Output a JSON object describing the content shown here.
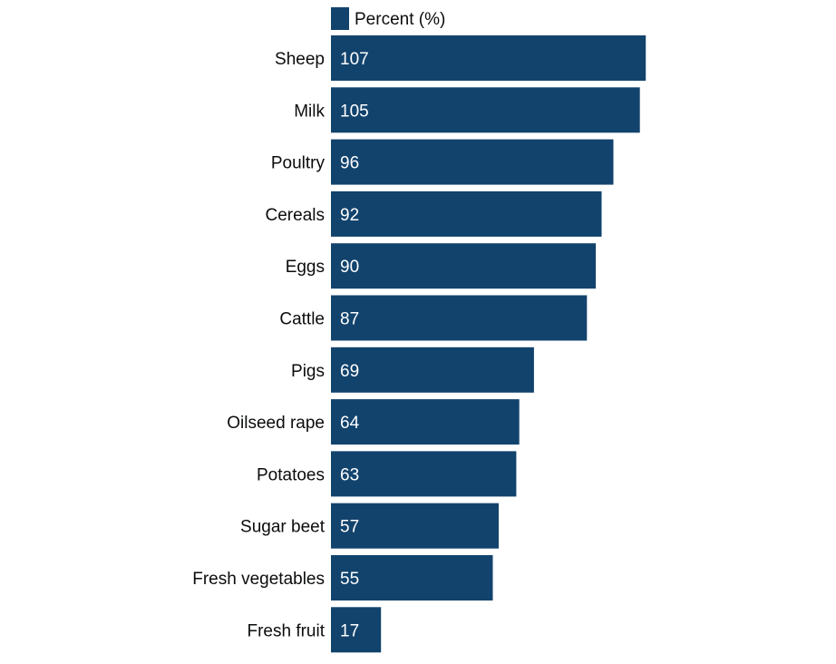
{
  "chart_data": {
    "type": "bar",
    "orientation": "horizontal",
    "categories": [
      "Sheep",
      "Milk",
      "Poultry",
      "Cereals",
      "Eggs",
      "Cattle",
      "Pigs",
      "Oilseed rape",
      "Potatoes",
      "Sugar beet",
      "Fresh vegetables",
      "Fresh fruit"
    ],
    "series": [
      {
        "name": "Percent (%)",
        "values": [
          107,
          105,
          96,
          92,
          90,
          87,
          69,
          64,
          63,
          57,
          55,
          17
        ],
        "color": "#12436d"
      }
    ],
    "title": "",
    "xlabel": "",
    "ylabel": "",
    "xlim": [
      0,
      107
    ],
    "grid": false,
    "legend": "top",
    "data_labels": "inside-start"
  }
}
